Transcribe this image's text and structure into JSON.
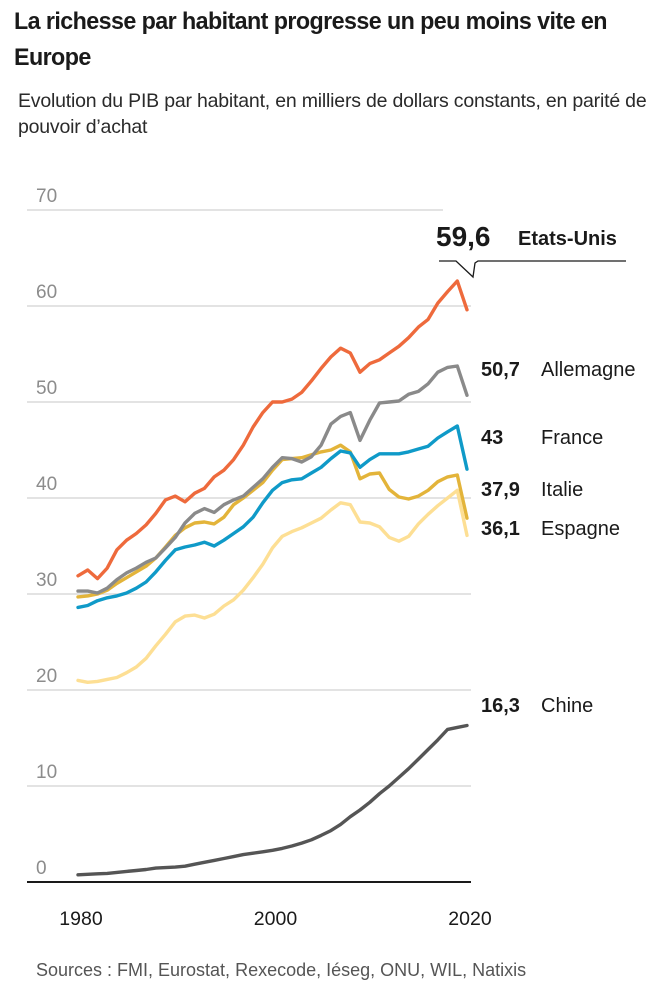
{
  "header": {
    "title": "La richesse par habitant progresse un peu moins vite en Europe",
    "subtitle": "Evolution du PIB par habitant, en milliers de dollars constants, en parité de pouvoir d’achat"
  },
  "footer": {
    "source": "Sources : FMI, Eurostat, Rexecode, Iéseg, ONU, WIL, Natixis"
  },
  "chart_data": {
    "type": "line",
    "title": "La richesse par habitant progresse un peu moins vite en Europe",
    "subtitle": "Evolution du PIB par habitant, en milliers de dollars constants, en parité de pouvoir d’achat",
    "xlabel": "",
    "ylabel": "",
    "xlim": [
      1980,
      2020
    ],
    "ylim": [
      0,
      70
    ],
    "grid": true,
    "legend": "direct labels at line ends (right)",
    "x_ticks": [
      "1980",
      "2000",
      "2020"
    ],
    "y_ticks": [
      "0",
      "10",
      "20",
      "30",
      "40",
      "50",
      "60",
      "70"
    ],
    "x": [
      1980,
      1981,
      1982,
      1983,
      1984,
      1985,
      1986,
      1987,
      1988,
      1989,
      1990,
      1991,
      1992,
      1993,
      1994,
      1995,
      1996,
      1997,
      1998,
      1999,
      2000,
      2001,
      2002,
      2003,
      2004,
      2005,
      2006,
      2007,
      2008,
      2009,
      2010,
      2011,
      2012,
      2013,
      2014,
      2015,
      2016,
      2017,
      2018,
      2019,
      2020
    ],
    "series": [
      {
        "name": "Etats-Unis",
        "end_label": "59,6",
        "color": "#ee6a3c",
        "highlight": true,
        "values": [
          31.9,
          32.5,
          31.6,
          32.7,
          34.6,
          35.6,
          36.3,
          37.2,
          38.4,
          39.8,
          40.2,
          39.6,
          40.5,
          41.0,
          42.2,
          42.9,
          44.0,
          45.5,
          47.4,
          48.9,
          50.0,
          50.0,
          50.3,
          51.0,
          52.2,
          53.5,
          54.7,
          55.6,
          55.1,
          53.1,
          54.0,
          54.4,
          55.1,
          55.8,
          56.7,
          57.8,
          58.6,
          60.3,
          61.5,
          62.6,
          59.6
        ]
      },
      {
        "name": "Allemagne",
        "end_label": "50,7",
        "color": "#8a8a8a",
        "values": [
          30.3,
          30.3,
          30.1,
          30.6,
          31.5,
          32.2,
          32.7,
          33.3,
          33.75,
          34.8,
          35.9,
          37.4,
          38.4,
          38.9,
          38.5,
          39.3,
          39.8,
          40.2,
          41.1,
          42.0,
          43.2,
          44.2,
          44.1,
          43.75,
          44.3,
          45.5,
          47.7,
          48.5,
          48.9,
          46.0,
          48.1,
          49.9,
          50.0,
          50.1,
          50.8,
          51.1,
          51.9,
          53.1,
          53.6,
          53.75,
          50.7
        ]
      },
      {
        "name": "France",
        "end_label": "43",
        "color": "#0f9ac8",
        "values": [
          28.6,
          28.8,
          29.3,
          29.6,
          29.8,
          30.1,
          30.6,
          31.25,
          32.3,
          33.5,
          34.6,
          34.9,
          35.1,
          35.4,
          35.0,
          35.6,
          36.3,
          37.0,
          38.0,
          39.5,
          40.8,
          41.6,
          41.9,
          42.0,
          42.6,
          43.2,
          44.1,
          44.9,
          44.7,
          43.2,
          44.0,
          44.6,
          44.6,
          44.6,
          44.8,
          45.1,
          45.4,
          46.25,
          46.9,
          47.5,
          43.0
        ]
      },
      {
        "name": "Italie",
        "end_label": "37,9",
        "color": "#e3b43a",
        "values": [
          29.7,
          29.8,
          30.0,
          30.4,
          31.1,
          31.7,
          32.3,
          32.9,
          33.75,
          34.9,
          36.1,
          36.9,
          37.4,
          37.5,
          37.3,
          38.0,
          39.3,
          40.0,
          40.8,
          41.6,
          42.9,
          44.0,
          44.1,
          44.2,
          44.5,
          44.8,
          45.0,
          45.5,
          44.8,
          42.0,
          42.5,
          42.6,
          40.9,
          40.1,
          39.9,
          40.2,
          40.8,
          41.7,
          42.2,
          42.4,
          37.9
        ]
      },
      {
        "name": "Espagne",
        "end_label": "36,1",
        "color": "#fddf94",
        "values": [
          21.0,
          20.8,
          20.9,
          21.1,
          21.3,
          21.8,
          22.4,
          23.3,
          24.6,
          25.8,
          27.1,
          27.7,
          27.8,
          27.5,
          27.9,
          28.75,
          29.4,
          30.4,
          31.7,
          33.1,
          34.8,
          36.0,
          36.5,
          36.9,
          37.4,
          37.9,
          38.75,
          39.5,
          39.3,
          37.5,
          37.4,
          37.0,
          35.9,
          35.5,
          36.0,
          37.3,
          38.3,
          39.2,
          40.0,
          40.8,
          36.1
        ]
      },
      {
        "name": "Chine",
        "end_label": "16,3",
        "color": "#555555",
        "values": [
          0.75,
          0.8,
          0.85,
          0.9,
          1.0,
          1.1,
          1.2,
          1.3,
          1.45,
          1.5,
          1.55,
          1.65,
          1.85,
          2.05,
          2.25,
          2.45,
          2.65,
          2.85,
          3.0,
          3.15,
          3.3,
          3.5,
          3.75,
          4.05,
          4.4,
          4.85,
          5.35,
          6.0,
          6.8,
          7.5,
          8.3,
          9.2,
          10.0,
          10.9,
          11.8,
          12.8,
          13.8,
          14.8,
          15.9,
          16.1,
          16.3
        ]
      }
    ]
  }
}
